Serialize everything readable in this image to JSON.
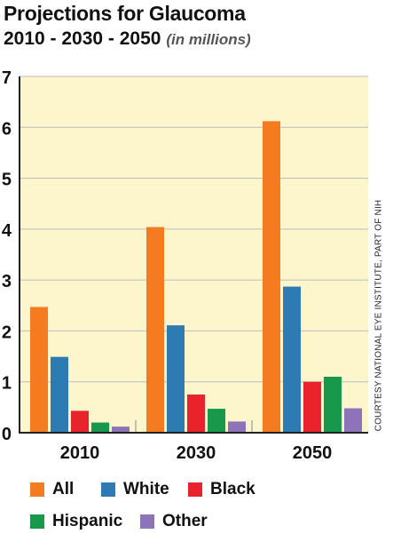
{
  "header": {
    "title": "Projections for Glaucoma",
    "subtitle": "2010 - 2030 - 2050",
    "subtitle_note": "(in millions)"
  },
  "credit": "COURTESY NATIONAL EYE INSTITUTE, PART OF NIH",
  "chart_data": {
    "type": "bar",
    "title": "Projections for Glaucoma",
    "subtitle": "2010 - 2030 - 2050 (in millions)",
    "categories": [
      "2010",
      "2030",
      "2050"
    ],
    "series": [
      {
        "name": "All",
        "color": "#f47b20",
        "values": [
          2.47,
          4.04,
          6.12
        ]
      },
      {
        "name": "White",
        "color": "#2e7bb4",
        "values": [
          1.49,
          2.11,
          2.87
        ]
      },
      {
        "name": "Black",
        "color": "#e8232b",
        "values": [
          0.43,
          0.75,
          1.0
        ]
      },
      {
        "name": "Hispanic",
        "color": "#17984a",
        "values": [
          0.2,
          0.47,
          1.1
        ]
      },
      {
        "name": "Other",
        "color": "#8e73b8",
        "values": [
          0.12,
          0.22,
          0.48
        ]
      }
    ],
    "yticks": [
      "0",
      "1",
      "2",
      "3",
      "4",
      "5",
      "6",
      "7"
    ],
    "ylim": [
      0,
      7
    ],
    "grid": true,
    "legend_position": "bottom",
    "plot_background": "#fdf6cc",
    "grid_color": "#bbbbbb"
  }
}
